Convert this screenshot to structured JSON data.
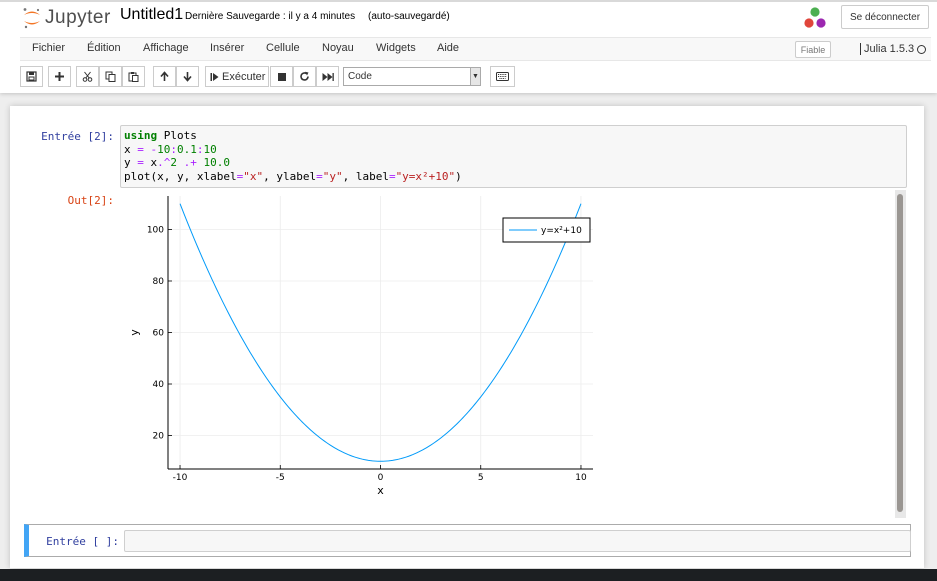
{
  "header": {
    "brand": "Jupyter",
    "notebook_name": "Untitled1",
    "save_status": "Dernière Sauvegarde : il y a 4 minutes",
    "autosave_status": "(auto-sauvegardé)",
    "logout_label": "Se déconnecter",
    "logo_colors": [
      "#f37626",
      "#4caf50",
      "#e0453b",
      "#9c27b0"
    ]
  },
  "menubar": {
    "items": [
      "Fichier",
      "Édition",
      "Affichage",
      "Insérer",
      "Cellule",
      "Noyau",
      "Widgets",
      "Aide"
    ],
    "trusted_label": "Fiable",
    "kernel_name": "Julia 1.5.3"
  },
  "toolbar": {
    "buttons": [
      "save-icon",
      "plus-icon",
      "cut-icon",
      "copy-icon",
      "paste-icon",
      "arrow-up-icon",
      "arrow-down-icon",
      "step-forward-icon",
      "stop-icon",
      "restart-icon",
      "fast-forward-icon",
      "keyboard-icon"
    ],
    "run_label": "Exécuter",
    "cell_type": "Code"
  },
  "cells": [
    {
      "prompt": "Entrée [2]:",
      "code_lines": [
        "using Plots",
        "x = -10:0.1:10",
        "y = x.^2 .+ 10.0",
        "plot(x, y, xlabel=\"x\", ylabel=\"y\", label=\"y=x²+10\")"
      ],
      "out_prompt": "Out[2]:"
    },
    {
      "prompt": "Entrée [ ]:"
    }
  ],
  "chart_data": {
    "type": "line",
    "series": [
      {
        "name": "y=x²+10",
        "function": "y = x^2 + 10",
        "x_range": [
          -10,
          10
        ],
        "step": 0.1,
        "color": "#009af9"
      }
    ],
    "xlabel": "x",
    "ylabel": "y",
    "xticks": [
      -10,
      -5,
      0,
      5,
      10
    ],
    "yticks": [
      20,
      40,
      60,
      80,
      100
    ],
    "xlim": [
      -10.6,
      10.6
    ],
    "ylim": [
      7,
      113
    ],
    "grid": true,
    "legend_position": "top-right"
  },
  "colors": {
    "in_prompt": "#303f9f",
    "out_prompt": "#d84315",
    "edit_mode_border": "#42a5f5"
  }
}
